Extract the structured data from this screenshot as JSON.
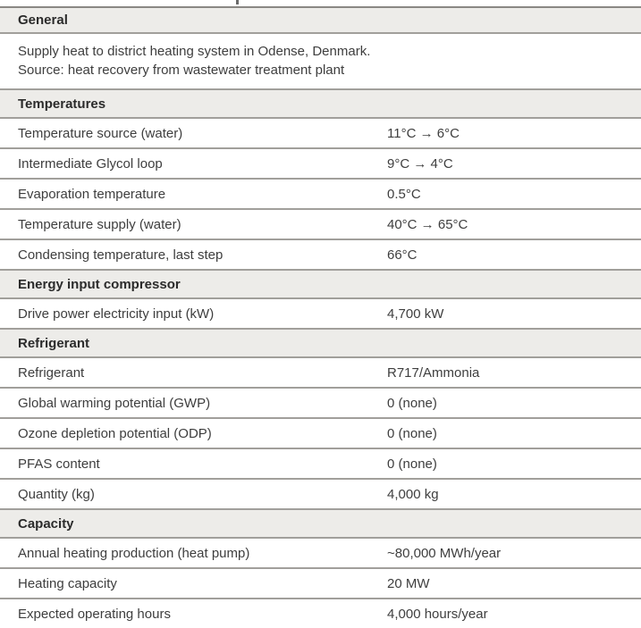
{
  "colors": {
    "header_bg": "#EDECE9",
    "rule": "#A19F9B",
    "top_rule": "#8A8884",
    "text": "#3E3E3E",
    "heading_text": "#2B2B2B"
  },
  "table": {
    "sections": [
      {
        "title": "General",
        "description_lines": [
          "Supply heat to district heating system in Odense, Denmark.",
          "Source: heat recovery from wastewater treatment plant"
        ],
        "rows": []
      },
      {
        "title": "Temperatures",
        "rows": [
          {
            "label": "Temperature source (water)",
            "value": "11°C → 6°C"
          },
          {
            "label": "Intermediate Glycol loop",
            "value": "9°C → 4°C"
          },
          {
            "label": "Evaporation temperature",
            "value": "0.5°C"
          },
          {
            "label": "Temperature supply (water)",
            "value": "40°C → 65°C"
          },
          {
            "label": "Condensing temperature, last step",
            "value": "66°C"
          }
        ]
      },
      {
        "title": "Energy input compressor",
        "rows": [
          {
            "label": "Drive power electricity input (kW)",
            "value": "4,700 kW"
          }
        ]
      },
      {
        "title": "Refrigerant",
        "rows": [
          {
            "label": "Refrigerant",
            "value": "R717/Ammonia"
          },
          {
            "label": "Global warming potential (GWP)",
            "value": "0 (none)"
          },
          {
            "label": "Ozone depletion potential (ODP)",
            "value": "0 (none)"
          },
          {
            "label": "PFAS content",
            "value": "0 (none)"
          },
          {
            "label": "Quantity (kg)",
            "value": "4,000 kg"
          }
        ]
      },
      {
        "title": "Capacity",
        "rows": [
          {
            "label": "Annual heating production (heat pump)",
            "value": "~80,000 MWh/year"
          },
          {
            "label": "Heating capacity",
            "value": "20 MW"
          },
          {
            "label": "Expected operating hours",
            "value": "4,000 hours/year"
          }
        ]
      }
    ]
  }
}
